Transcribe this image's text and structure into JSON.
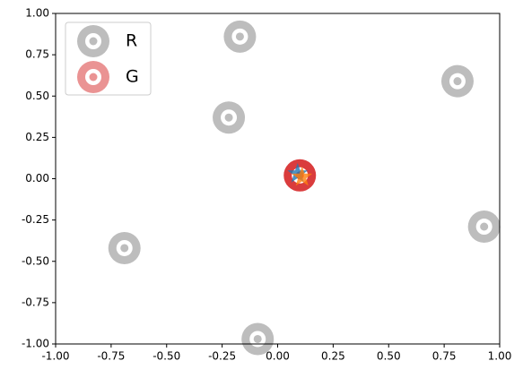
{
  "chart_data": {
    "type": "scatter",
    "series": [
      {
        "name": "R",
        "color": "#bdbdbd",
        "marker": "ring",
        "x": [
          -0.17,
          0.81,
          -0.22,
          -0.69,
          0.93,
          -0.09
        ],
        "values": [
          0.86,
          0.59,
          0.37,
          -0.42,
          -0.29,
          -0.97
        ]
      },
      {
        "name": "G",
        "color": "#d62728",
        "marker": "ring",
        "x": [
          0.1
        ],
        "values": [
          0.02
        ]
      },
      {
        "color": "#1f77b4",
        "marker": "star",
        "x": [
          0.09
        ],
        "values": [
          0.03
        ]
      },
      {
        "color": "#ff7f0e",
        "marker": "star",
        "x": [
          0.11
        ],
        "values": [
          0.01
        ]
      }
    ],
    "xlim": [
      -1,
      1
    ],
    "ylim": [
      -1,
      1
    ],
    "xticks": [
      {
        "value": -1,
        "label": "-1.00"
      },
      {
        "value": -0.75,
        "label": "-0.75"
      },
      {
        "value": -0.5,
        "label": "-0.50"
      },
      {
        "value": -0.25,
        "label": "-0.25"
      },
      {
        "value": 0,
        "label": "0.00"
      },
      {
        "value": 0.25,
        "label": "0.25"
      },
      {
        "value": 0.5,
        "label": "0.50"
      },
      {
        "value": 0.75,
        "label": "0.75"
      },
      {
        "value": 1,
        "label": "1.00"
      }
    ],
    "yticks": [
      {
        "value": -1,
        "label": "-1.00"
      },
      {
        "value": -0.75,
        "label": "-0.75"
      },
      {
        "value": -0.5,
        "label": "-0.50"
      },
      {
        "value": -0.25,
        "label": "-0.25"
      },
      {
        "value": 0,
        "label": "0.00"
      },
      {
        "value": 0.25,
        "label": "0.25"
      },
      {
        "value": 0.5,
        "label": "0.50"
      },
      {
        "value": 0.75,
        "label": "0.75"
      },
      {
        "value": 1,
        "label": "1.00"
      }
    ],
    "legend": "upper-left",
    "grid": false
  }
}
